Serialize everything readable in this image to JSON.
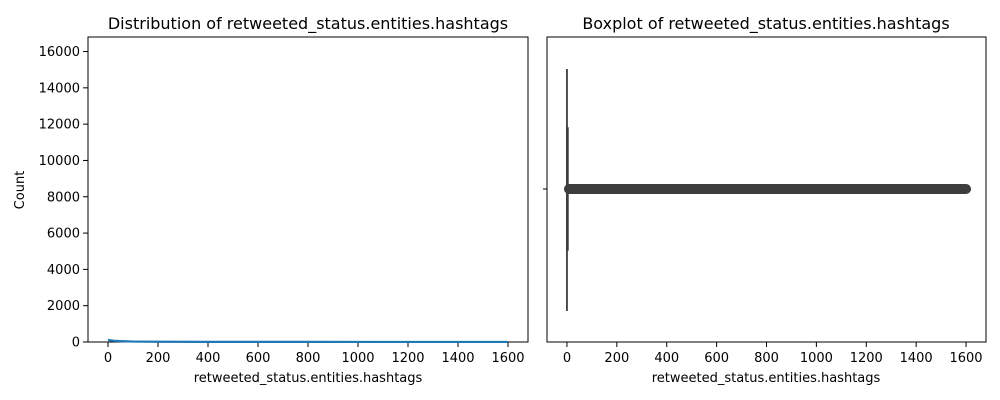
{
  "chart_data": [
    {
      "type": "histogram",
      "title": "Distribution of retweeted_status.entities.hashtags",
      "xlabel": "retweeted_status.entities.hashtags",
      "ylabel": "Count",
      "xlim": [
        -80,
        1680
      ],
      "ylim": [
        0,
        16800
      ],
      "xticks": [
        0,
        200,
        400,
        600,
        800,
        1000,
        1200,
        1400,
        1600
      ],
      "yticks": [
        0,
        2000,
        4000,
        6000,
        8000,
        10000,
        12000,
        14000,
        16000
      ],
      "kde_line": {
        "color": "#1f77b4",
        "x": [
          0,
          10,
          30,
          60,
          100,
          200,
          400,
          800,
          1200,
          1600
        ],
        "y": [
          120,
          90,
          60,
          40,
          25,
          15,
          8,
          5,
          3,
          2
        ]
      }
    },
    {
      "type": "boxplot",
      "title": "Boxplot of retweeted_status.entities.hashtags",
      "xlabel": "retweeted_status.entities.hashtags",
      "xlim": [
        -80,
        1680
      ],
      "xticks": [
        0,
        200,
        400,
        600,
        800,
        1000,
        1200,
        1400,
        1600
      ],
      "box": {
        "min": 0,
        "q1": 0,
        "median": 0,
        "q3": 4,
        "whisker_low": 0,
        "whisker_high": 10
      },
      "outliers": {
        "x_range": [
          0,
          1600
        ],
        "color": "#3d3d3d"
      }
    }
  ]
}
